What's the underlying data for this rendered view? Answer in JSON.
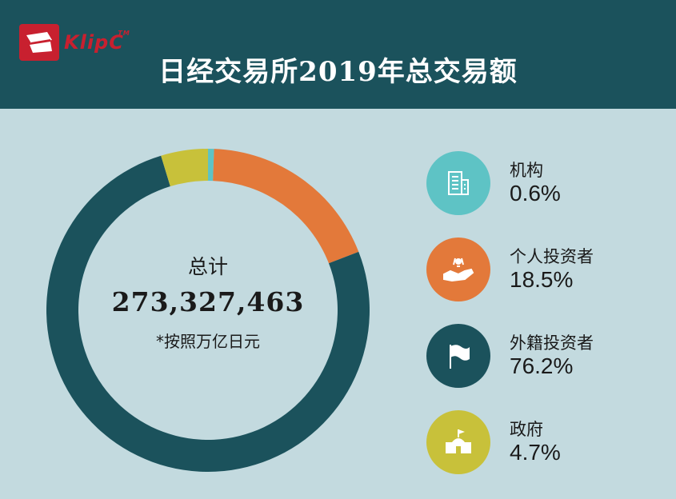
{
  "header": {
    "logo_text": "KlipC",
    "logo_mark": "TM",
    "title": "日经交易所2019年总交易额"
  },
  "summary": {
    "label": "总计",
    "value": "273,327,463",
    "note": "*按照万亿日元"
  },
  "chart_data": {
    "type": "pie",
    "variant": "donut",
    "title": "日经交易所2019年总交易额",
    "categories": [
      "机构",
      "个人投资者",
      "外籍投资者",
      "政府"
    ],
    "values": [
      0.6,
      18.5,
      76.2,
      4.7
    ],
    "value_labels": [
      "0.6%",
      "18.5%",
      "76.2%",
      "4.7%"
    ],
    "colors": [
      "#5ec3c5",
      "#e3793a",
      "#1b525c",
      "#c8c13a"
    ],
    "start_angle": "top",
    "direction": "clockwise"
  },
  "legend": [
    {
      "icon": "building-icon",
      "color": "#5ec3c5"
    },
    {
      "icon": "hand-coins-icon",
      "color": "#e3793a"
    },
    {
      "icon": "flag-icon",
      "color": "#1b525c"
    },
    {
      "icon": "government-building-icon",
      "color": "#c8c13a"
    }
  ],
  "colors": {
    "background": "#c3dadf",
    "header": "#1b525c",
    "logo": "#c8202f"
  }
}
